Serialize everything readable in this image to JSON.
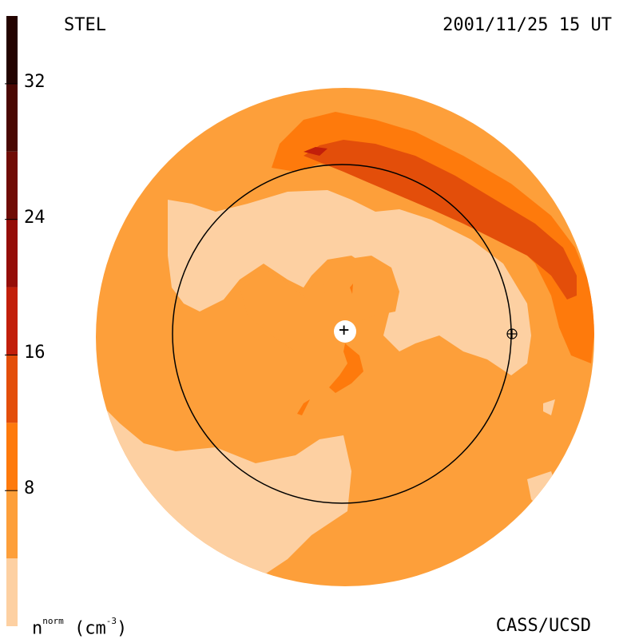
{
  "header": {
    "instrument": "STEL",
    "timestamp": "2001/11/25 15 UT"
  },
  "footer": {
    "credit": "CASS/UCSD",
    "quantity": "n",
    "quantity_sup": "norm",
    "unit_base": "(cm",
    "unit_exp": "-3",
    "unit_close": ")"
  },
  "colorbar": {
    "ticks": [
      "32",
      "24",
      "16",
      "8"
    ],
    "tick_values": [
      32,
      24,
      16,
      8
    ],
    "range": [
      0,
      36
    ],
    "levels": [
      {
        "from": 0,
        "to": 4,
        "color": "#fdd0a2"
      },
      {
        "from": 4,
        "to": 8,
        "color": "#fd9f3a"
      },
      {
        "from": 8,
        "to": 12,
        "color": "#fe7a0c"
      },
      {
        "from": 12,
        "to": 16,
        "color": "#e34e0a"
      },
      {
        "from": 16,
        "to": 20,
        "color": "#c21f0a"
      },
      {
        "from": 20,
        "to": 24,
        "color": "#950d08"
      },
      {
        "from": 24,
        "to": 28,
        "color": "#700c05"
      },
      {
        "from": 28,
        "to": 32,
        "color": "#4a0803"
      },
      {
        "from": 32,
        "to": 36,
        "color": "#230300"
      }
    ]
  },
  "map": {
    "observer_marker": "+",
    "earth_marker": "⊕"
  },
  "colors": {
    "background": "#ffffff",
    "level_low": "#fdd0a2",
    "level_mid": "#fd9f3a",
    "level_high": "#fe7a0c",
    "level_peak": "#e34e0a"
  }
}
